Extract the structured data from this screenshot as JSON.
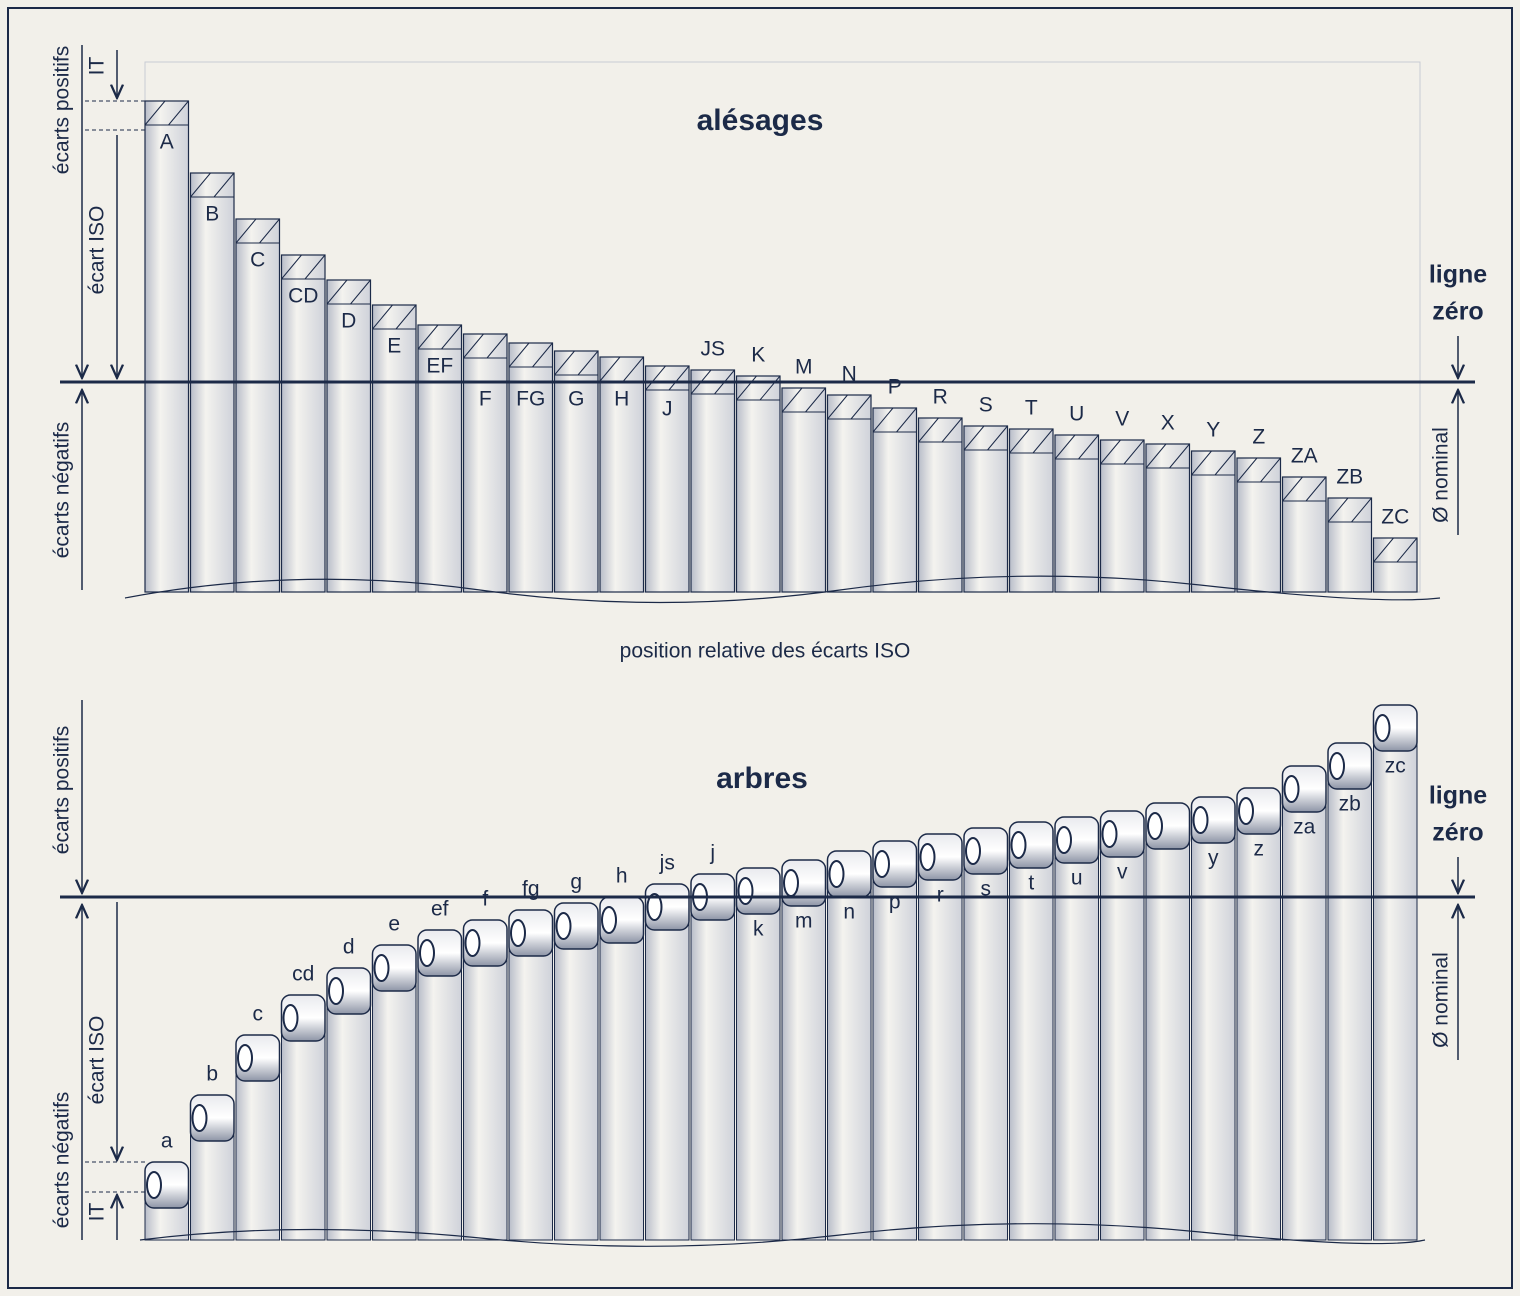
{
  "holes": {
    "title": "alésages",
    "labels": [
      "A",
      "B",
      "C",
      "CD",
      "D",
      "E",
      "EF",
      "F",
      "FG",
      "G",
      "H",
      "J",
      "JS",
      "K",
      "M",
      "N",
      "P",
      "R",
      "S",
      "T",
      "U",
      "V",
      "X",
      "Y",
      "Z",
      "ZA",
      "ZB",
      "ZC"
    ],
    "positive": "écarts positifs",
    "negative": "écarts négatifs",
    "iso": "écart ISO",
    "it": "IT",
    "zero_line": [
      "ligne",
      "zéro"
    ],
    "nominal": "Ø nominal"
  },
  "caption": "position relative des écarts ISO",
  "shafts": {
    "title": "arbres",
    "labels": [
      "a",
      "b",
      "c",
      "cd",
      "d",
      "e",
      "ef",
      "f",
      "fg",
      "g",
      "h",
      "js",
      "j",
      "k",
      "m",
      "n",
      "p",
      "r",
      "s",
      "t",
      "u",
      "v",
      null,
      "y",
      "z",
      "za",
      "zb",
      "zc"
    ],
    "positive": "écarts positifs",
    "negative": "écarts négatifs",
    "iso": "écart ISO",
    "it": "IT",
    "zero_line": [
      "ligne",
      "zéro"
    ],
    "nominal": "Ø nominal"
  }
}
